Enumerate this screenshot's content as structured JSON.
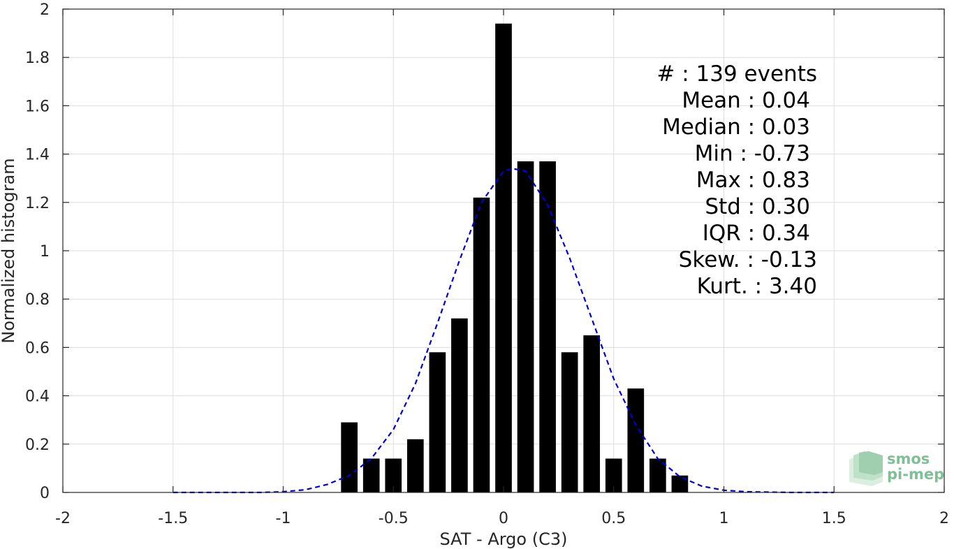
{
  "chart_data": {
    "type": "bar",
    "xlabel": "SAT - Argo (C3)",
    "ylabel": "Normalized histogram",
    "xlim": [
      -2,
      2
    ],
    "ylim": [
      0,
      2
    ],
    "xticks": [
      -2,
      -1.5,
      -1,
      -0.5,
      0,
      0.5,
      1,
      1.5,
      2
    ],
    "xtick_labels": [
      "-2",
      "-1.5",
      "-1",
      "-0.5",
      "0",
      "0.5",
      "1",
      "1.5",
      "2"
    ],
    "yticks": [
      0,
      0.2,
      0.4,
      0.6,
      0.8,
      1,
      1.2,
      1.4,
      1.6,
      1.8,
      2
    ],
    "ytick_labels": [
      "0",
      "0.2",
      "0.4",
      "0.6",
      "0.8",
      "1",
      "1.2",
      "1.4",
      "1.6",
      "1.8",
      "2"
    ],
    "grid": true,
    "bar_color": "#000000",
    "bin_width": 0.1,
    "bars": {
      "x": [
        -0.7,
        -0.6,
        -0.5,
        -0.4,
        -0.3,
        -0.2,
        -0.1,
        0.0,
        0.1,
        0.2,
        0.3,
        0.4,
        0.5,
        0.6,
        0.7,
        0.8
      ],
      "values": [
        0.29,
        0.14,
        0.14,
        0.22,
        0.58,
        0.72,
        1.22,
        1.94,
        1.37,
        1.37,
        0.58,
        0.65,
        0.14,
        0.43,
        0.14,
        0.07
      ]
    },
    "fit_curve": {
      "style": "dashed",
      "color": "#0000dd",
      "x": [
        -1.5,
        -1.3,
        -1.1,
        -1.0,
        -0.9,
        -0.8,
        -0.7,
        -0.6,
        -0.5,
        -0.4,
        -0.3,
        -0.2,
        -0.1,
        0.0,
        0.04,
        0.1,
        0.2,
        0.3,
        0.4,
        0.5,
        0.6,
        0.7,
        0.8,
        0.9,
        1.0,
        1.1,
        1.3,
        1.5
      ],
      "y": [
        0.0,
        0.0,
        0.0,
        0.003,
        0.011,
        0.033,
        0.07,
        0.14,
        0.26,
        0.45,
        0.7,
        0.96,
        1.2,
        1.33,
        1.34,
        1.33,
        1.19,
        0.97,
        0.72,
        0.47,
        0.28,
        0.14,
        0.065,
        0.026,
        0.009,
        0.003,
        0.0,
        0.0
      ]
    },
    "annotations": [
      {
        "label": "#  ",
        "sep": ":",
        "value": "139 events"
      },
      {
        "label": "Mean",
        "sep": ":",
        "value": "0.04"
      },
      {
        "label": "Median",
        "sep": ":",
        "value": "0.03"
      },
      {
        "label": "Min",
        "sep": ":",
        "value": "-0.73"
      },
      {
        "label": "Max",
        "sep": ":",
        "value": "0.83"
      },
      {
        "label": "Std",
        "sep": ":",
        "value": "0.30"
      },
      {
        "label": "IQR",
        "sep": ":",
        "value": "0.34"
      },
      {
        "label": "Skew.",
        "sep": ":",
        "value": "-0.13"
      },
      {
        "label": "Kurt.",
        "sep": ":",
        "value": "3.40"
      }
    ]
  },
  "logo": {
    "line1": "smos",
    "line2": "pi-mep",
    "color": "#7fbf95"
  }
}
